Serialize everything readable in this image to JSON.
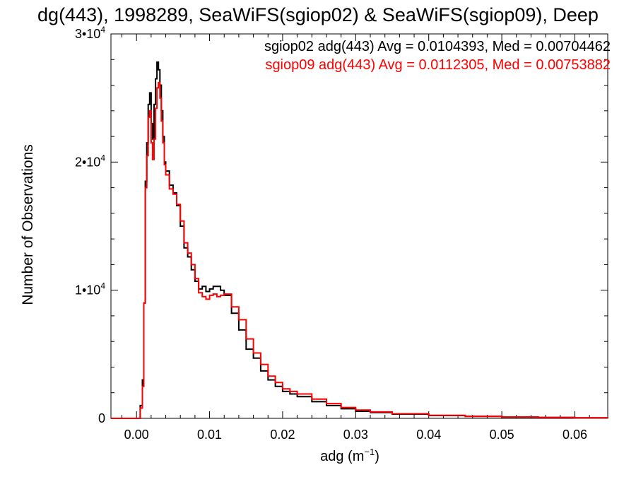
{
  "chart_data": {
    "type": "line",
    "title": "dg(443), 1998289, SeaWiFS(sgiop02) & SeaWiFS(sgiop09), Deep",
    "xlabel": "adg (m",
    "xlabel_sup": "−1",
    "xlabel_end": ")",
    "ylabel": "Number of Observations",
    "xlim": [
      -0.0035,
      0.0645
    ],
    "ylim": [
      0,
      30000
    ],
    "xticks": [
      0,
      0.01,
      0.02,
      0.03,
      0.04,
      0.05,
      0.06
    ],
    "xtick_labels": [
      "0.00",
      "0.01",
      "0.02",
      "0.03",
      "0.04",
      "0.05",
      "0.06"
    ],
    "yticks": [
      0,
      10000,
      20000,
      30000
    ],
    "ytick_labels": [
      {
        "main": "0",
        "sup": ""
      },
      {
        "main": "1•10",
        "sup": "4"
      },
      {
        "main": "2•10",
        "sup": "4"
      },
      {
        "main": "3•10",
        "sup": "4"
      }
    ],
    "grid": false,
    "legend": "top-right",
    "series": [
      {
        "name": "sgiop02 adg(443) Avg = 0.0104393, Med = 0.00704462",
        "color": "#000000",
        "x": [
          -0.0035,
          0.0002,
          0.0005,
          0.0008,
          0.001,
          0.0012,
          0.0014,
          0.0016,
          0.0018,
          0.002,
          0.0022,
          0.0024,
          0.0026,
          0.0028,
          0.003,
          0.0032,
          0.0034,
          0.0036,
          0.0038,
          0.004,
          0.0045,
          0.005,
          0.0055,
          0.006,
          0.0065,
          0.007,
          0.0075,
          0.008,
          0.0085,
          0.009,
          0.0095,
          0.01,
          0.0105,
          0.011,
          0.0115,
          0.012,
          0.013,
          0.014,
          0.015,
          0.016,
          0.017,
          0.018,
          0.019,
          0.02,
          0.021,
          0.022,
          0.024,
          0.026,
          0.028,
          0.03,
          0.032,
          0.035,
          0.04,
          0.045,
          0.05,
          0.055,
          0.06,
          0.0645
        ],
        "values": [
          0,
          0,
          1000,
          3000,
          9000,
          18500,
          21500,
          24500,
          25400,
          23000,
          21800,
          24500,
          26500,
          27800,
          27200,
          26000,
          24000,
          22000,
          20000,
          19300,
          18200,
          17600,
          16600,
          15000,
          13300,
          12600,
          11600,
          10700,
          10100,
          10300,
          9900,
          10100,
          10300,
          10300,
          10000,
          9600,
          8200,
          6900,
          5400,
          4700,
          3700,
          3000,
          2500,
          2100,
          1900,
          1700,
          1300,
          1000,
          750,
          550,
          450,
          330,
          220,
          150,
          100,
          70,
          40,
          30
        ]
      },
      {
        "name": "sgiop09 adg(443) Avg = 0.0112305, Med = 0.00753882",
        "color": "#ff0000",
        "x": [
          -0.0035,
          0.0002,
          0.0005,
          0.0008,
          0.001,
          0.0012,
          0.0014,
          0.0016,
          0.0018,
          0.002,
          0.0022,
          0.0024,
          0.0026,
          0.0028,
          0.003,
          0.0032,
          0.0034,
          0.0036,
          0.0038,
          0.004,
          0.0045,
          0.005,
          0.0055,
          0.006,
          0.0065,
          0.007,
          0.0075,
          0.008,
          0.0085,
          0.009,
          0.0095,
          0.01,
          0.0105,
          0.011,
          0.0115,
          0.012,
          0.013,
          0.014,
          0.015,
          0.016,
          0.017,
          0.018,
          0.019,
          0.02,
          0.021,
          0.022,
          0.024,
          0.026,
          0.028,
          0.03,
          0.032,
          0.035,
          0.04,
          0.045,
          0.05,
          0.055,
          0.06,
          0.0645
        ],
        "values": [
          0,
          0,
          800,
          2500,
          9000,
          18000,
          20500,
          23500,
          24000,
          21500,
          20200,
          21800,
          24200,
          25800,
          26200,
          25000,
          23200,
          21500,
          19800,
          19000,
          17900,
          17500,
          16700,
          15400,
          13700,
          12900,
          12000,
          10900,
          9800,
          9500,
          9300,
          9600,
          9700,
          9500,
          9600,
          9700,
          8700,
          7700,
          6200,
          5100,
          4200,
          3300,
          2800,
          2300,
          2100,
          1900,
          1500,
          1150,
          850,
          650,
          500,
          360,
          230,
          160,
          110,
          70,
          45,
          30
        ]
      }
    ]
  }
}
